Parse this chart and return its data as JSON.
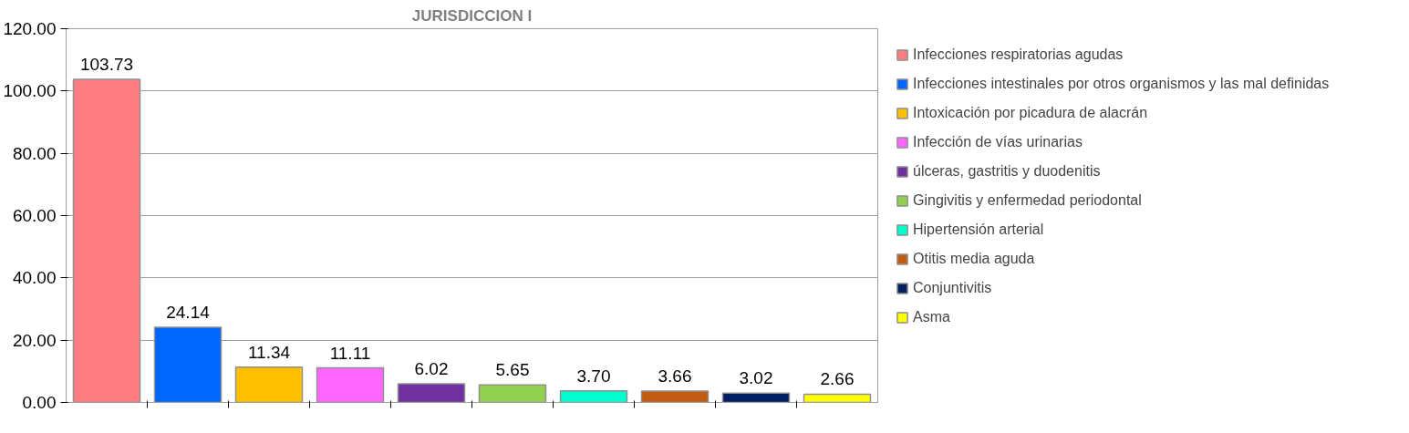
{
  "chart_data": {
    "type": "bar",
    "title": "JURISDICCION I",
    "categories": [
      null,
      null,
      null,
      null,
      null,
      null,
      null,
      null,
      null,
      null
    ],
    "series": [
      {
        "name": "Infecciones respiratorias agudas",
        "color": "#ff7c80",
        "values": [
          103.73,
          null,
          null,
          null,
          null,
          null,
          null,
          null,
          null,
          null
        ]
      },
      {
        "name": "Infecciones intestinales por otros organismos y las mal definidas",
        "color": "#0066ff",
        "values": [
          null,
          24.14,
          null,
          null,
          null,
          null,
          null,
          null,
          null,
          null
        ]
      },
      {
        "name": "Intoxicación por picadura de alacrán",
        "color": "#ffc000",
        "values": [
          null,
          null,
          11.34,
          null,
          null,
          null,
          null,
          null,
          null,
          null
        ]
      },
      {
        "name": "Infección de vías urinarias",
        "color": "#ff66ff",
        "values": [
          null,
          null,
          null,
          11.11,
          null,
          null,
          null,
          null,
          null,
          null
        ]
      },
      {
        "name": "úlceras, gastritis y duodenitis",
        "color": "#7030a0",
        "values": [
          null,
          null,
          null,
          null,
          6.02,
          null,
          null,
          null,
          null,
          null
        ]
      },
      {
        "name": "Gingivitis y enfermedad periodontal",
        "color": "#92d050",
        "values": [
          null,
          null,
          null,
          null,
          null,
          5.65,
          null,
          null,
          null,
          null
        ]
      },
      {
        "name": "Hipertensión arterial",
        "color": "#00ffcc",
        "values": [
          null,
          null,
          null,
          null,
          null,
          null,
          3.7,
          null,
          null,
          null
        ]
      },
      {
        "name": "Otitis media aguda",
        "color": "#c55a11",
        "values": [
          null,
          null,
          null,
          null,
          null,
          null,
          null,
          3.66,
          null,
          null
        ]
      },
      {
        "name": "Conjuntivitis",
        "color": "#002060",
        "values": [
          null,
          null,
          null,
          null,
          null,
          null,
          null,
          null,
          3.02,
          null
        ]
      },
      {
        "name": "Asma",
        "color": "#ffff00",
        "values": [
          null,
          null,
          null,
          null,
          null,
          null,
          null,
          null,
          null,
          2.66
        ]
      }
    ],
    "value_labels": [
      "103.73",
      "24.14",
      "11.34",
      "11.11",
      "6.02",
      "5.65",
      "3.70",
      "3.66",
      "3.02",
      "2.66"
    ],
    "ylim": [
      0,
      120
    ],
    "yticks": [
      {
        "value": 0,
        "label": "0.00"
      },
      {
        "value": 20,
        "label": "20.00"
      },
      {
        "value": 40,
        "label": "40.00"
      },
      {
        "value": 60,
        "label": "60.00"
      },
      {
        "value": 80,
        "label": "80.00"
      },
      {
        "value": 100,
        "label": "100.00"
      },
      {
        "value": 120,
        "label": "120.00"
      }
    ],
    "grid": "y",
    "legend": "right",
    "tick_labels": "y"
  }
}
